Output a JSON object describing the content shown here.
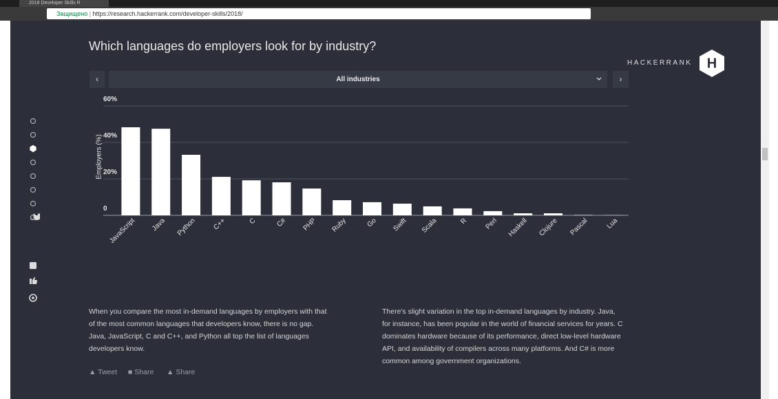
{
  "browser": {
    "tab_title": "2018 Developer Skills R",
    "security_label": "Защищено",
    "url": "https://research.hackerrank.com/developer-skills/2018/"
  },
  "header": {
    "title": "Which languages do employers look for by industry?",
    "brand": "HACKERRANK",
    "logo_letter": "H"
  },
  "filter": {
    "selected": "All industries"
  },
  "chart_data": {
    "type": "bar",
    "y_label": "Employers (%)",
    "categories": [
      "JavaScript",
      "Java",
      "Python",
      "C++",
      "C",
      "C#",
      "PHP",
      "Ruby",
      "Go",
      "Swift",
      "Scala",
      "R",
      "Perl",
      "Haskell",
      "Clojure",
      "Pascal",
      "Lua"
    ],
    "values": [
      48.3,
      47.5,
      33.2,
      21.1,
      19.2,
      18.1,
      14.7,
      8.3,
      7.2,
      6.4,
      4.9,
      3.8,
      2.3,
      1.1,
      1.1,
      0.2,
      0.1
    ],
    "color": "#ffffff",
    "ylim": [
      0,
      60
    ],
    "yticks": [
      0,
      {
        "value": 20,
        "label": "20%"
      },
      {
        "value": 40,
        "label": "40%"
      },
      {
        "value": 60,
        "label": "60%"
      }
    ],
    "grid": true
  },
  "paragraphs": [
    "When you compare the most in-demand languages by employers with that of the most common languages that developers know, there is no gap. Java, JavaScript, C and C++, and Python all top the list of languages developers know.",
    "There's slight variation in the top in-demand languages by industry. Java, for instance, has been popular in the world of financial services for years. C dominates hardware because of its performance, direct low-level hardware API, and availability of compilers across many platforms. And C# is more common among government organizations."
  ],
  "share": [
    "Tweet",
    "Share",
    "Share"
  ]
}
